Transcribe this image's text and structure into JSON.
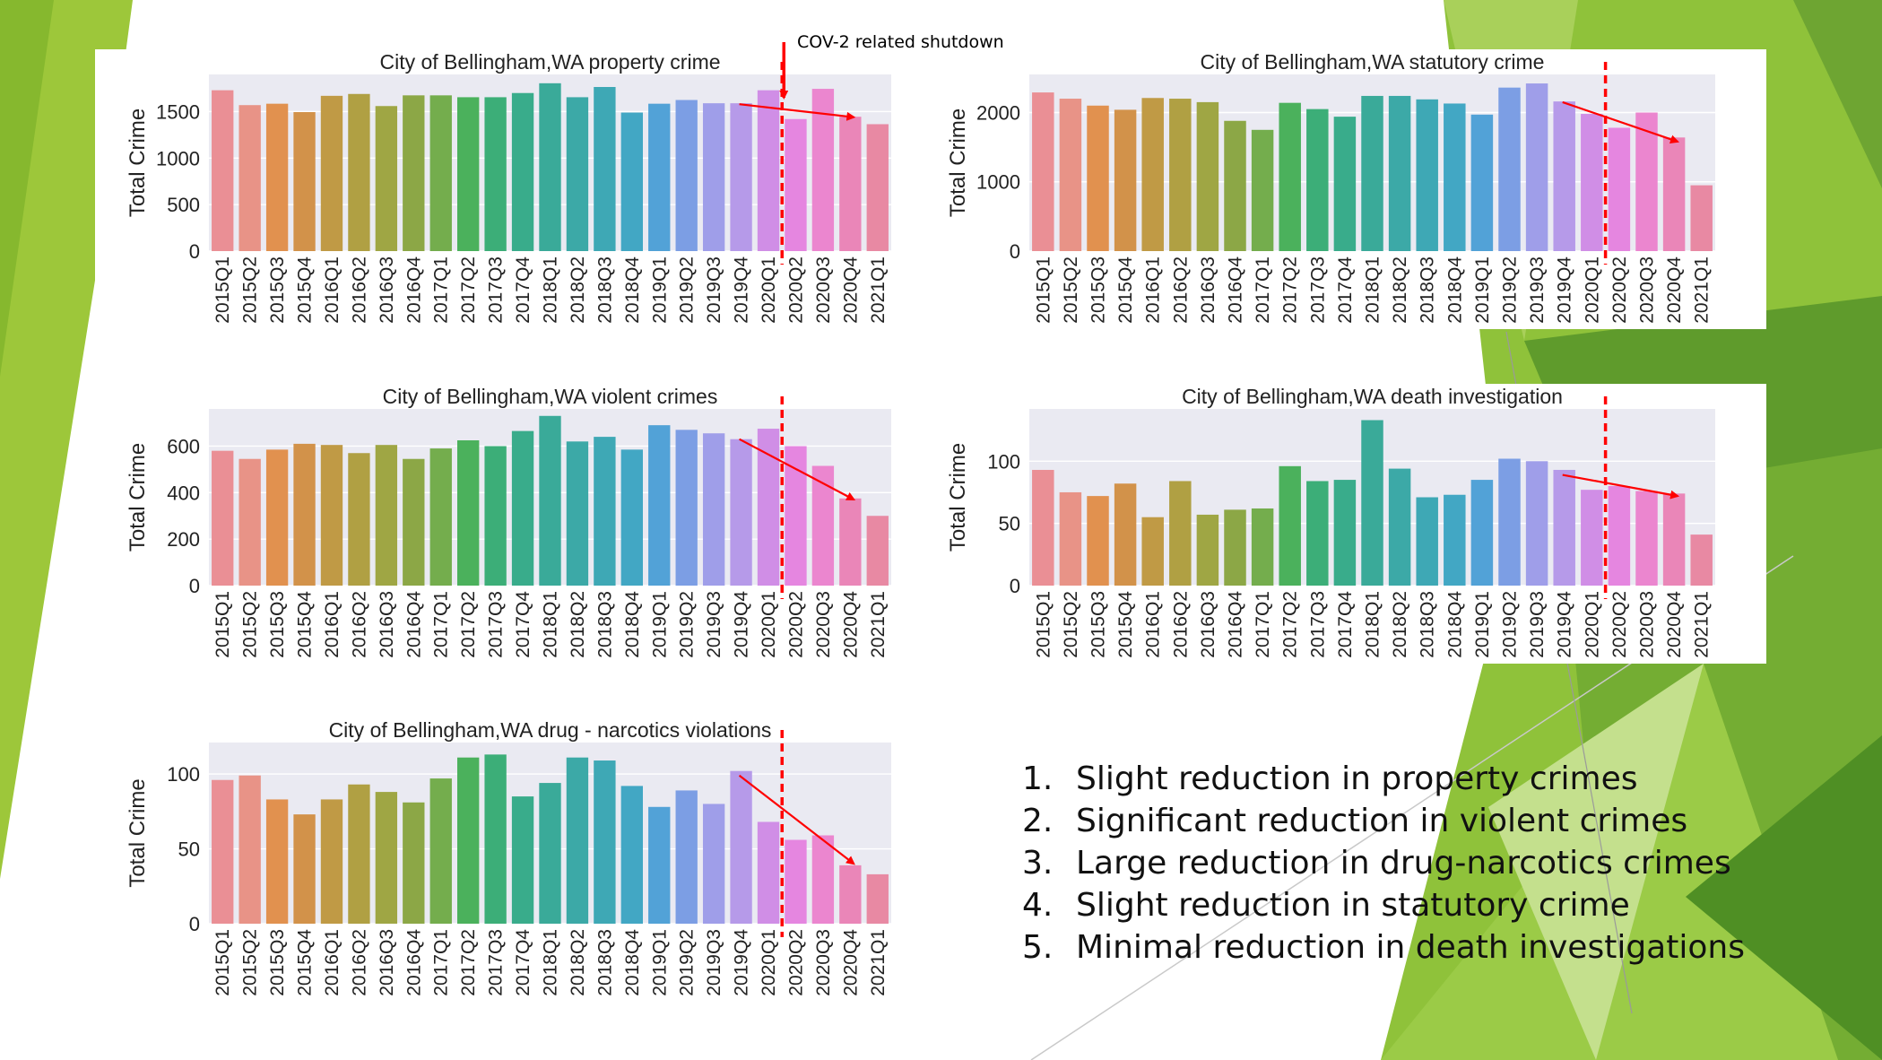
{
  "slide": {
    "annotation": "COV-2 related shutdown",
    "findings": [
      {
        "num": "1.",
        "text": "Slight reduction in property crimes"
      },
      {
        "num": "2.",
        "text": "Significant reduction in violent crimes"
      },
      {
        "num": "3.",
        "text": "Large reduction in drug-narcotics crimes"
      },
      {
        "num": "4.",
        "text": "Slight reduction in statutory crime"
      },
      {
        "num": "5.",
        "text": "Minimal reduction in death investigations"
      }
    ],
    "colors": {
      "plot_bg": "#eaeaf2",
      "shutdown_line": "#ff0000",
      "trend_arrow": "#ff0000",
      "green_light": "#9dc73a",
      "green_dark": "#5a9a2a"
    }
  },
  "chart_data": [
    {
      "id": "property",
      "type": "bar",
      "title": "City of Bellingham,WA property crime",
      "ylabel": "Total Crime",
      "xlabel": "",
      "ylim": [
        0,
        1900
      ],
      "yticks": [
        0,
        500,
        1000,
        1500
      ],
      "categories": [
        "2015Q1",
        "2015Q2",
        "2015Q3",
        "2015Q4",
        "2016Q1",
        "2016Q2",
        "2016Q3",
        "2016Q4",
        "2017Q1",
        "2017Q2",
        "2017Q3",
        "2017Q4",
        "2018Q1",
        "2018Q2",
        "2018Q3",
        "2018Q4",
        "2019Q1",
        "2019Q2",
        "2019Q3",
        "2019Q4",
        "2020Q1",
        "2020Q2",
        "2020Q3",
        "2020Q4",
        "2021Q1"
      ],
      "values": [
        1730,
        1570,
        1585,
        1495,
        1670,
        1690,
        1560,
        1675,
        1675,
        1655,
        1655,
        1700,
        1805,
        1655,
        1765,
        1490,
        1585,
        1625,
        1590,
        1590,
        1730,
        1420,
        1745,
        1445,
        1365
      ],
      "shutdown_after": "2020Q1",
      "trend": {
        "from": "2019Q4",
        "from_value": 1580,
        "to": "2020Q4",
        "to_value": 1440
      }
    },
    {
      "id": "statutory",
      "type": "bar",
      "title": "City of Bellingham,WA statutory crime",
      "ylabel": "Total Crime",
      "xlabel": "",
      "ylim": [
        0,
        2550
      ],
      "yticks": [
        0,
        1000,
        2000
      ],
      "categories": [
        "2015Q1",
        "2015Q2",
        "2015Q3",
        "2015Q4",
        "2016Q1",
        "2016Q2",
        "2016Q3",
        "2016Q4",
        "2017Q1",
        "2017Q2",
        "2017Q3",
        "2017Q4",
        "2018Q1",
        "2018Q2",
        "2018Q3",
        "2018Q4",
        "2019Q1",
        "2019Q2",
        "2019Q3",
        "2019Q4",
        "2020Q1",
        "2020Q2",
        "2020Q3",
        "2020Q4",
        "2021Q1"
      ],
      "values": [
        2290,
        2200,
        2100,
        2040,
        2210,
        2200,
        2150,
        1880,
        1750,
        2140,
        2050,
        1940,
        2240,
        2240,
        2190,
        2130,
        1970,
        2360,
        2420,
        2160,
        1980,
        1780,
        2000,
        1640,
        950
      ],
      "shutdown_after": "2020Q1",
      "trend": {
        "from": "2019Q4",
        "from_value": 2150,
        "to": "2020Q4",
        "to_value": 1580
      }
    },
    {
      "id": "violent",
      "type": "bar",
      "title": "City of Bellingham,WA violent crimes",
      "ylabel": "Total Crime",
      "xlabel": "",
      "ylim": [
        0,
        760
      ],
      "yticks": [
        0,
        200,
        400,
        600
      ],
      "categories": [
        "2015Q1",
        "2015Q2",
        "2015Q3",
        "2015Q4",
        "2016Q1",
        "2016Q2",
        "2016Q3",
        "2016Q4",
        "2017Q1",
        "2017Q2",
        "2017Q3",
        "2017Q4",
        "2018Q1",
        "2018Q2",
        "2018Q3",
        "2018Q4",
        "2019Q1",
        "2019Q2",
        "2019Q3",
        "2019Q4",
        "2020Q1",
        "2020Q2",
        "2020Q3",
        "2020Q4",
        "2021Q1"
      ],
      "values": [
        580,
        545,
        585,
        610,
        605,
        570,
        605,
        545,
        590,
        625,
        600,
        665,
        730,
        620,
        640,
        585,
        690,
        670,
        655,
        630,
        675,
        600,
        515,
        375,
        300
      ],
      "shutdown_after": "2020Q1",
      "trend": {
        "from": "2019Q4",
        "from_value": 630,
        "to": "2020Q4",
        "to_value": 370
      }
    },
    {
      "id": "death",
      "type": "bar",
      "title": "City of Bellingham,WA death investigation",
      "ylabel": "Total Crime",
      "xlabel": "",
      "ylim": [
        0,
        142
      ],
      "yticks": [
        0,
        50,
        100
      ],
      "categories": [
        "2015Q1",
        "2015Q2",
        "2015Q3",
        "2015Q4",
        "2016Q1",
        "2016Q2",
        "2016Q3",
        "2016Q4",
        "2017Q1",
        "2017Q2",
        "2017Q3",
        "2017Q4",
        "2018Q1",
        "2018Q2",
        "2018Q3",
        "2018Q4",
        "2019Q1",
        "2019Q2",
        "2019Q3",
        "2019Q4",
        "2020Q1",
        "2020Q2",
        "2020Q3",
        "2020Q4",
        "2021Q1"
      ],
      "values": [
        93,
        75,
        72,
        82,
        55,
        84,
        57,
        61,
        62,
        96,
        84,
        85,
        133,
        94,
        71,
        73,
        85,
        102,
        100,
        93,
        77,
        80,
        76,
        74,
        41
      ],
      "shutdown_after": "2020Q1",
      "trend": {
        "from": "2019Q4",
        "from_value": 89,
        "to": "2020Q4",
        "to_value": 72
      }
    },
    {
      "id": "drug",
      "type": "bar",
      "title": "City of Bellingham,WA drug - narcotics violations",
      "ylabel": "Total Crime",
      "xlabel": "",
      "ylim": [
        0,
        121
      ],
      "yticks": [
        0,
        50,
        100
      ],
      "categories": [
        "2015Q1",
        "2015Q2",
        "2015Q3",
        "2015Q4",
        "2016Q1",
        "2016Q2",
        "2016Q3",
        "2016Q4",
        "2017Q1",
        "2017Q2",
        "2017Q3",
        "2017Q4",
        "2018Q1",
        "2018Q2",
        "2018Q3",
        "2018Q4",
        "2019Q1",
        "2019Q2",
        "2019Q3",
        "2019Q4",
        "2020Q1",
        "2020Q2",
        "2020Q3",
        "2020Q4",
        "2021Q1"
      ],
      "values": [
        96,
        99,
        83,
        73,
        83,
        93,
        88,
        81,
        97,
        111,
        113,
        85,
        94,
        111,
        109,
        92,
        78,
        89,
        80,
        102,
        68,
        56,
        59,
        39,
        33
      ],
      "shutdown_after": "2020Q1",
      "trend": {
        "from": "2019Q4",
        "from_value": 99,
        "to": "2020Q4",
        "to_value": 40
      }
    }
  ]
}
